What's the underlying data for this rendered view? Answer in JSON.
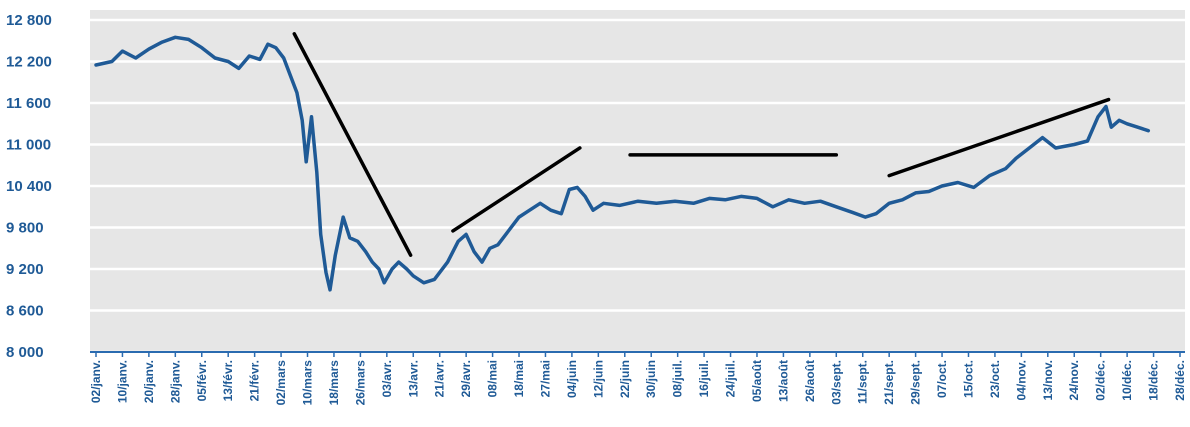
{
  "chart_data": {
    "type": "line",
    "title": "",
    "xlabel": "",
    "ylabel": "",
    "ylim": [
      8000,
      12800
    ],
    "y_ticks": [
      8000,
      8600,
      9200,
      9800,
      10400,
      11000,
      11600,
      12200,
      12800
    ],
    "y_tick_labels": [
      "8 000",
      "8 600",
      "9 200",
      "9 800",
      "10 400",
      "11 000",
      "11 600",
      "12 200",
      "12 800"
    ],
    "x_tick_labels": [
      "02/janv.",
      "10/janv.",
      "20/janv.",
      "28/janv.",
      "05/févr.",
      "13/févr.",
      "21/févr.",
      "02/mars",
      "10/mars",
      "18/mars",
      "26/mars",
      "03/avr.",
      "13/avr.",
      "21/avr.",
      "29/avr.",
      "08/mai",
      "18/mai",
      "27/mai",
      "04/juin",
      "12/juin",
      "22/juin",
      "30/juin",
      "08/juil.",
      "16/juil.",
      "24/juil.",
      "05/août",
      "13/août",
      "26/août",
      "03/sept.",
      "11/sept.",
      "21/sept.",
      "29/sept.",
      "07/oct.",
      "15/oct.",
      "23/oct.",
      "04/nov.",
      "13/nov.",
      "24/nov.",
      "02/déc.",
      "10/déc.",
      "18/déc.",
      "28/déc."
    ],
    "grid": true,
    "line_color": "#1f5a96",
    "plot_background": "#e6e6e6",
    "series": [
      {
        "values": [
          [
            0,
            12150
          ],
          [
            0.6,
            12200
          ],
          [
            1.0,
            12350
          ],
          [
            1.5,
            12250
          ],
          [
            2.0,
            12380
          ],
          [
            2.5,
            12480
          ],
          [
            3.0,
            12550
          ],
          [
            3.5,
            12520
          ],
          [
            4.0,
            12400
          ],
          [
            4.5,
            12250
          ],
          [
            5.0,
            12200
          ],
          [
            5.4,
            12100
          ],
          [
            5.8,
            12280
          ],
          [
            6.2,
            12230
          ],
          [
            6.5,
            12450
          ],
          [
            6.8,
            12400
          ],
          [
            7.1,
            12250
          ],
          [
            7.4,
            11950
          ],
          [
            7.6,
            11750
          ],
          [
            7.8,
            11350
          ],
          [
            7.95,
            10750
          ],
          [
            8.15,
            11400
          ],
          [
            8.35,
            10600
          ],
          [
            8.5,
            9700
          ],
          [
            8.7,
            9150
          ],
          [
            8.85,
            8900
          ],
          [
            9.05,
            9400
          ],
          [
            9.35,
            9950
          ],
          [
            9.6,
            9650
          ],
          [
            9.9,
            9600
          ],
          [
            10.2,
            9450
          ],
          [
            10.45,
            9300
          ],
          [
            10.7,
            9200
          ],
          [
            10.9,
            9000
          ],
          [
            11.2,
            9200
          ],
          [
            11.45,
            9300
          ],
          [
            11.75,
            9200
          ],
          [
            12.0,
            9100
          ],
          [
            12.4,
            9000
          ],
          [
            12.8,
            9050
          ],
          [
            13.3,
            9300
          ],
          [
            13.7,
            9600
          ],
          [
            14.0,
            9700
          ],
          [
            14.3,
            9450
          ],
          [
            14.6,
            9300
          ],
          [
            14.9,
            9500
          ],
          [
            15.2,
            9550
          ],
          [
            15.6,
            9750
          ],
          [
            16.0,
            9950
          ],
          [
            16.4,
            10050
          ],
          [
            16.8,
            10150
          ],
          [
            17.2,
            10050
          ],
          [
            17.6,
            10000
          ],
          [
            17.9,
            10350
          ],
          [
            18.2,
            10380
          ],
          [
            18.5,
            10250
          ],
          [
            18.8,
            10050
          ],
          [
            19.2,
            10150
          ],
          [
            19.8,
            10120
          ],
          [
            20.5,
            10180
          ],
          [
            21.2,
            10150
          ],
          [
            21.9,
            10180
          ],
          [
            22.6,
            10150
          ],
          [
            23.2,
            10220
          ],
          [
            23.8,
            10200
          ],
          [
            24.4,
            10250
          ],
          [
            25.0,
            10220
          ],
          [
            25.6,
            10100
          ],
          [
            26.2,
            10200
          ],
          [
            26.8,
            10150
          ],
          [
            27.4,
            10180
          ],
          [
            28.0,
            10100
          ],
          [
            28.6,
            10020
          ],
          [
            29.1,
            9950
          ],
          [
            29.5,
            10000
          ],
          [
            30.0,
            10150
          ],
          [
            30.5,
            10200
          ],
          [
            31.0,
            10300
          ],
          [
            31.5,
            10320
          ],
          [
            32.0,
            10400
          ],
          [
            32.6,
            10450
          ],
          [
            33.2,
            10380
          ],
          [
            33.8,
            10550
          ],
          [
            34.4,
            10650
          ],
          [
            34.8,
            10800
          ],
          [
            35.3,
            10950
          ],
          [
            35.8,
            11100
          ],
          [
            36.3,
            10950
          ],
          [
            37.0,
            11000
          ],
          [
            37.5,
            11050
          ],
          [
            37.9,
            11400
          ],
          [
            38.2,
            11550
          ],
          [
            38.4,
            11250
          ],
          [
            38.7,
            11350
          ],
          [
            39.0,
            11300
          ],
          [
            39.4,
            11250
          ],
          [
            39.8,
            11200
          ]
        ]
      }
    ],
    "trend_lines": [
      {
        "from": [
          7.5,
          12600
        ],
        "to": [
          11.9,
          9400
        ]
      },
      {
        "from": [
          13.5,
          9750
        ],
        "to": [
          18.3,
          10950
        ]
      },
      {
        "from": [
          20.2,
          10850
        ],
        "to": [
          28.0,
          10850
        ]
      },
      {
        "from": [
          30.0,
          10550
        ],
        "to": [
          38.3,
          11650
        ]
      }
    ]
  }
}
